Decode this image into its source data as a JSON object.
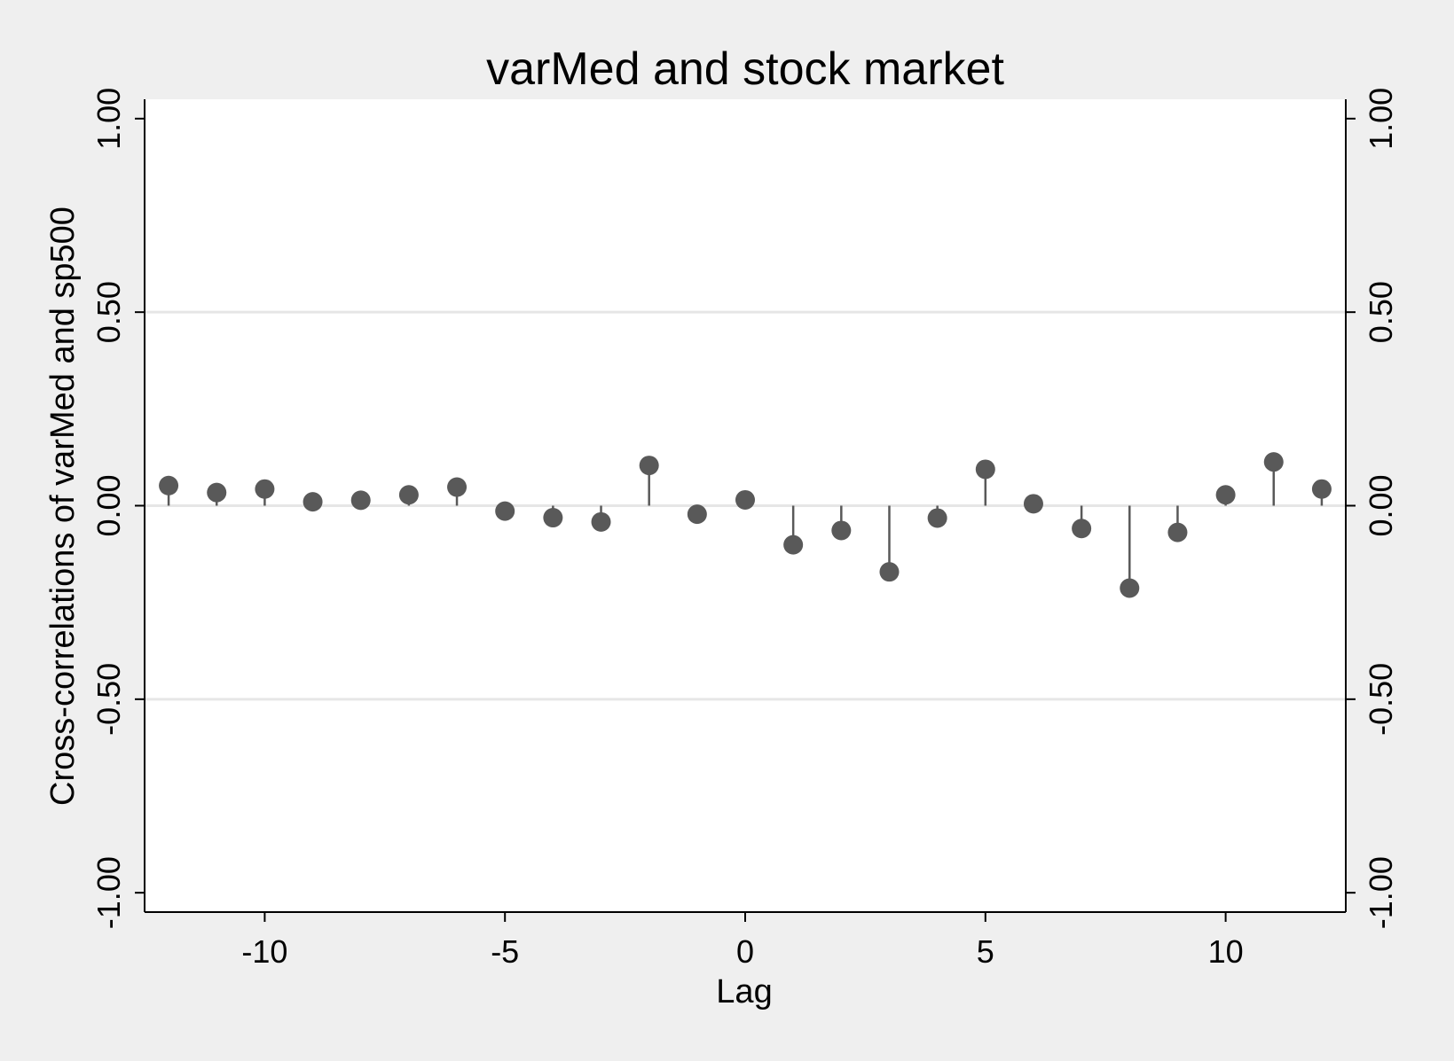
{
  "chart_data": {
    "type": "stem",
    "title": "varMed and stock market",
    "xlabel": "Lag",
    "ylabel": "Cross-correlations of varMed and sp500",
    "xlim": [
      -12.5,
      12.5
    ],
    "ylim": [
      -1.05,
      1.05
    ],
    "x_ticks": [
      -10,
      -5,
      0,
      5,
      10
    ],
    "x_tick_labels": [
      "-10",
      "-5",
      "0",
      "5",
      "10"
    ],
    "y_ticks": [
      -1,
      -0.5,
      0,
      0.5,
      1
    ],
    "y_tick_labels": [
      "-1.00",
      "-0.50",
      "0.00",
      "0.50",
      "1.00"
    ],
    "gridlines_y": [
      -0.5,
      0,
      0.5
    ],
    "right_axis": true,
    "colors": {
      "marker": "#595959",
      "grid": "#e6e6e6",
      "plot_bg": "#ffffff",
      "page_bg": "#efefef"
    },
    "x": [
      -12,
      -11,
      -10,
      -9,
      -8,
      -7,
      -6,
      -5,
      -4,
      -3,
      -2,
      -1,
      0,
      1,
      2,
      3,
      4,
      5,
      6,
      7,
      8,
      9,
      10,
      11,
      12
    ],
    "values": [
      0.052,
      0.034,
      0.043,
      0.01,
      0.014,
      0.028,
      0.048,
      -0.014,
      -0.031,
      -0.042,
      0.104,
      -0.022,
      0.015,
      -0.101,
      -0.064,
      -0.171,
      -0.032,
      0.094,
      0.005,
      -0.059,
      -0.213,
      -0.069,
      0.028,
      0.113,
      0.043
    ]
  }
}
